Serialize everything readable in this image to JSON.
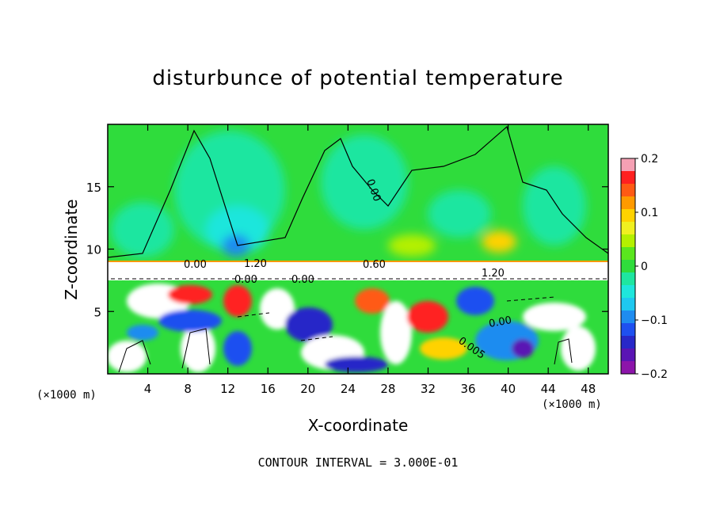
{
  "chart_data": {
    "type": "heatmap",
    "title": "disturbunce of potential temperature",
    "xlabel": "X-coordinate",
    "ylabel": "Z-coordinate",
    "x_unit": "(×1000 m)",
    "y_unit": "(×1000 m)",
    "xlim": [
      0,
      50
    ],
    "ylim": [
      0,
      20
    ],
    "x_ticks": [
      "4",
      "8",
      "12",
      "16",
      "20",
      "24",
      "28",
      "32",
      "36",
      "40",
      "44",
      "48"
    ],
    "x_tick_values": [
      4,
      8,
      12,
      16,
      20,
      24,
      28,
      32,
      36,
      40,
      44,
      48
    ],
    "y_ticks": [
      "5",
      "10",
      "15"
    ],
    "y_tick_values": [
      5,
      10,
      15
    ],
    "colorbar": {
      "range": [
        -0.2,
        0.2
      ],
      "tick_labels": [
        "0.2",
        "0.1",
        "0",
        "−0.1",
        "−0.2"
      ],
      "tick_values": [
        0.2,
        0.1,
        0.0,
        -0.1,
        -0.2
      ],
      "colors": [
        "#f5a0b4",
        "#ff2020",
        "#ff5a14",
        "#ff9a00",
        "#ffd200",
        "#f0f020",
        "#b4f000",
        "#5ae61e",
        "#2fdc3c",
        "#1ee6a0",
        "#1ee6dc",
        "#1ec8f0",
        "#1e8cf0",
        "#1e50f0",
        "#2828c8",
        "#5a14b4",
        "#8c14aa"
      ]
    },
    "contour_labels": [
      "0.00",
      "0.60",
      "1.20",
      "0.00",
      "0.00",
      "0.00",
      "1.20",
      "0.005",
      "0.00"
    ],
    "footnote": "CONTOUR INTERVAL = 3.000E-01",
    "grid": false,
    "legend": "colorbar-right"
  }
}
